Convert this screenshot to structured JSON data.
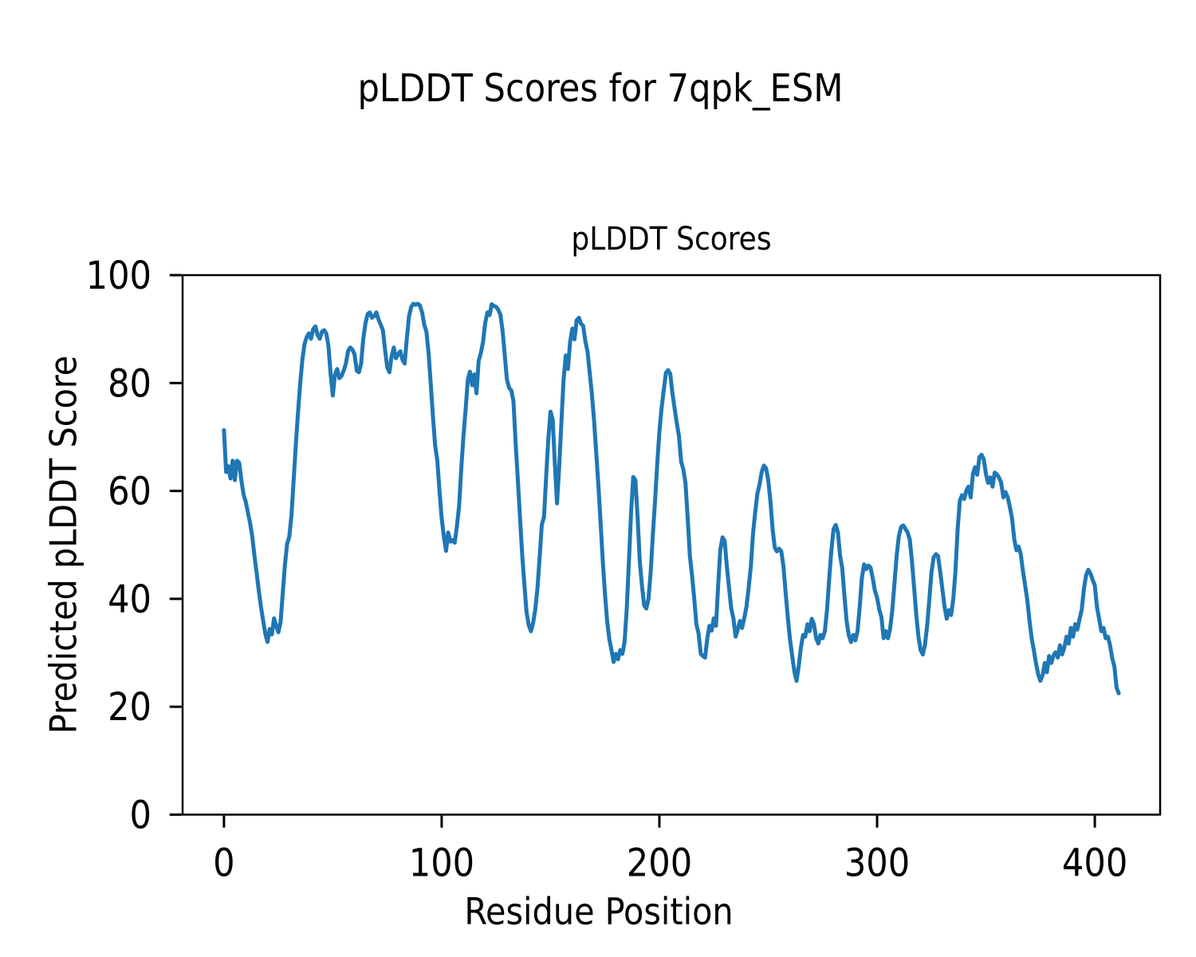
{
  "figure_title": "pLDDT Scores for 7qpk_ESM",
  "chart_data": {
    "type": "line",
    "title": "pLDDT Scores",
    "xlabel": "Residue Position",
    "ylabel": "Predicted pLDDT Score",
    "x_ticks": [
      0,
      100,
      200,
      300,
      400
    ],
    "y_ticks": [
      0,
      20,
      40,
      60,
      80,
      100
    ],
    "xlim": [
      -19,
      430
    ],
    "ylim": [
      0,
      100
    ],
    "grid": false,
    "legend_position": "none",
    "line_color": "#1f77b4",
    "background_color": "#ffffff",
    "series": [
      {
        "name": "pLDDT",
        "x_start": 0,
        "x_step": 1,
        "values": [
          71.3,
          63.5,
          64.6,
          62.3,
          65.6,
          62.0,
          65.6,
          65.2,
          62.0,
          59.3,
          58.0,
          56.0,
          54.1,
          51.5,
          48.0,
          44.9,
          41.5,
          38.5,
          36.0,
          33.5,
          32.0,
          34.4,
          33.4,
          36.4,
          35.0,
          33.8,
          35.7,
          41.0,
          46.2,
          50.2,
          51.5,
          55.4,
          62.0,
          68.5,
          74.4,
          79.7,
          84.3,
          87.2,
          88.5,
          89.2,
          88.2,
          90.0,
          90.5,
          88.9,
          88.2,
          89.5,
          89.8,
          89.2,
          86.9,
          81.6,
          77.7,
          81.6,
          82.6,
          80.9,
          81.3,
          82.3,
          83.6,
          85.9,
          86.6,
          86.2,
          85.3,
          82.3,
          82.0,
          83.6,
          88.2,
          91.1,
          92.8,
          93.1,
          92.1,
          92.4,
          93.1,
          91.8,
          90.8,
          89.8,
          86.2,
          82.9,
          82.0,
          84.9,
          86.6,
          84.6,
          85.3,
          85.9,
          84.3,
          83.6,
          88.2,
          92.4,
          94.1,
          94.7,
          94.5,
          94.7,
          94.4,
          93.1,
          90.8,
          89.5,
          85.6,
          79.7,
          73.8,
          68.5,
          65.6,
          60.0,
          55.0,
          51.5,
          48.9,
          52.3,
          50.6,
          50.9,
          50.4,
          53.4,
          57.2,
          64.1,
          70.1,
          75.1,
          80.6,
          82.1,
          79.6,
          81.6,
          78.1,
          84.1,
          85.6,
          87.6,
          91.1,
          93.1,
          92.6,
          94.6,
          94.3,
          94.1,
          93.6,
          92.6,
          89.6,
          85.1,
          80.6,
          79.1,
          78.6,
          76.6,
          68.6,
          62.0,
          55.0,
          48.0,
          42.6,
          37.5,
          35.1,
          34.0,
          35.5,
          38.0,
          42.0,
          47.7,
          53.7,
          55.2,
          62.7,
          69.7,
          74.7,
          73.2,
          65.0,
          57.7,
          64.7,
          72.7,
          80.6,
          85.1,
          82.6,
          87.6,
          90.1,
          88.1,
          91.6,
          92.1,
          91.0,
          90.6,
          87.8,
          85.8,
          81.9,
          78.0,
          73.0,
          67.0,
          61.0,
          54.0,
          47.0,
          41.0,
          36.0,
          32.5,
          30.5,
          28.3,
          29.8,
          28.8,
          30.5,
          29.8,
          32.0,
          38.0,
          47.0,
          56.0,
          62.6,
          62.0,
          55.0,
          47.0,
          42.5,
          38.8,
          38.2,
          40.0,
          45.0,
          51.9,
          58.0,
          65.0,
          71.0,
          75.3,
          78.6,
          81.9,
          82.4,
          81.7,
          78.0,
          75.3,
          72.6,
          70.1,
          65.4,
          64.0,
          61.5,
          55.0,
          48.0,
          44.4,
          40.0,
          35.3,
          33.6,
          29.8,
          29.4,
          29.1,
          32.7,
          35.0,
          34.1,
          36.4,
          35.0,
          42.5,
          49.1,
          51.4,
          50.7,
          46.0,
          42.0,
          38.2,
          36.4,
          33.0,
          34.3,
          35.9,
          34.6,
          36.5,
          38.5,
          42.0,
          46.0,
          52.0,
          56.0,
          59.5,
          61.2,
          63.5,
          64.7,
          64.2,
          62.0,
          58.2,
          52.9,
          49.5,
          48.8,
          49.3,
          48.8,
          46.0,
          41.0,
          36.5,
          32.5,
          29.5,
          26.5,
          24.8,
          27.5,
          31.0,
          33.3,
          33.0,
          35.3,
          34.0,
          36.3,
          35.3,
          32.7,
          31.7,
          33.3,
          32.7,
          34.0,
          37.9,
          43.8,
          49.0,
          52.9,
          53.7,
          52.3,
          48.0,
          45.7,
          40.5,
          35.9,
          33.3,
          32.0,
          33.3,
          32.3,
          34.0,
          38.5,
          43.8,
          46.4,
          45.5,
          46.2,
          45.8,
          43.8,
          41.5,
          40.2,
          38.0,
          36.6,
          32.7,
          34.0,
          32.7,
          34.5,
          37.9,
          43.0,
          48.0,
          51.6,
          53.3,
          53.6,
          53.0,
          52.3,
          51.0,
          47.1,
          42.0,
          37.0,
          33.0,
          30.5,
          29.7,
          31.5,
          35.0,
          40.0,
          45.0,
          47.7,
          48.3,
          47.9,
          45.0,
          41.8,
          38.5,
          36.3,
          37.9,
          37.0,
          40.0,
          45.1,
          53.0,
          58.2,
          59.2,
          58.5,
          60.1,
          60.8,
          58.8,
          63.1,
          64.4,
          63.0,
          66.3,
          66.7,
          65.9,
          63.1,
          61.5,
          62.5,
          60.8,
          63.4,
          63.1,
          62.5,
          61.5,
          58.8,
          59.8,
          58.8,
          57.0,
          54.9,
          51.0,
          49.0,
          49.7,
          48.3,
          45.1,
          42.5,
          39.8,
          35.9,
          32.7,
          30.5,
          28.0,
          26.0,
          24.8,
          25.8,
          28.1,
          26.4,
          29.4,
          28.1,
          29.5,
          30.1,
          29.1,
          31.4,
          29.7,
          31.0,
          33.0,
          31.7,
          34.6,
          33.0,
          35.3,
          34.3,
          36.3,
          38.0,
          41.8,
          44.4,
          45.4,
          44.7,
          43.5,
          42.5,
          38.5,
          36.3,
          34.0,
          34.6,
          32.7,
          33.0,
          31.4,
          29.0,
          27.4,
          23.5,
          22.5
        ]
      }
    ]
  }
}
